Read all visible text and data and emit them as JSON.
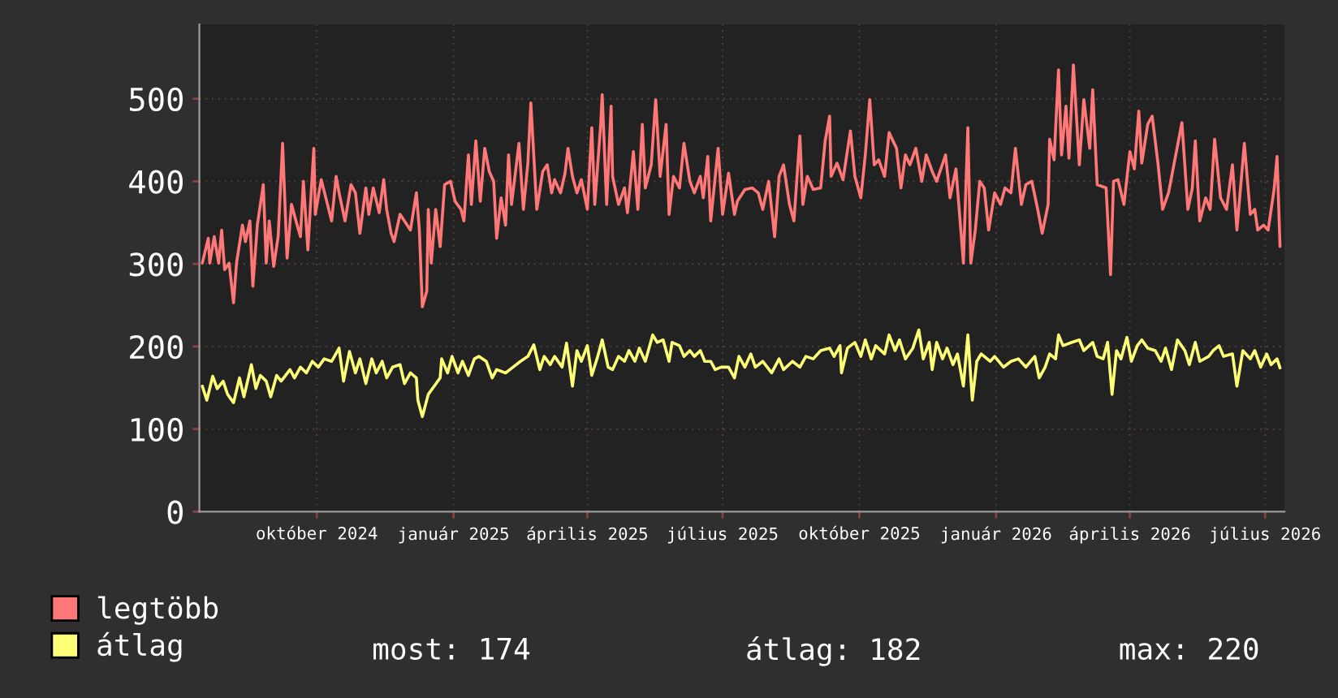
{
  "chart_data": {
    "type": "line",
    "xlim": [
      "2024-07-14",
      "2026-07-14"
    ],
    "xticks": [
      {
        "value": "2024-10-01",
        "label": "október 2024"
      },
      {
        "value": "2025-01-01",
        "label": "január 2025"
      },
      {
        "value": "2025-04-01",
        "label": "április 2025"
      },
      {
        "value": "2025-07-01",
        "label": "július 2025"
      },
      {
        "value": "2025-10-01",
        "label": "október 2025"
      },
      {
        "value": "2026-01-01",
        "label": "január 2026"
      },
      {
        "value": "2026-04-01",
        "label": "április 2026"
      },
      {
        "value": "2026-07-01",
        "label": "július 2026"
      }
    ],
    "ylim": [
      0,
      590
    ],
    "yticks": [
      0,
      100,
      200,
      300,
      400,
      500
    ],
    "grid": true,
    "legend": "bottom left",
    "annotations": [
      "most: 174",
      "átlag: 182",
      "max: 220"
    ],
    "series": [
      {
        "name": "legtöbb",
        "color": "#ff7777",
        "x": [
          "2024-07-16",
          "2024-07-20",
          "2024-07-21",
          "2024-07-24",
          "2024-07-27",
          "2024-07-29",
          "2024-07-31",
          "2024-08-03",
          "2024-08-06",
          "2024-08-08",
          "2024-08-12",
          "2024-08-14",
          "2024-08-17",
          "2024-08-19",
          "2024-08-22",
          "2024-08-26",
          "2024-08-28",
          "2024-08-30",
          "2024-09-02",
          "2024-09-05",
          "2024-09-08",
          "2024-09-11",
          "2024-09-14",
          "2024-09-17",
          "2024-09-20",
          "2024-09-22",
          "2024-09-25",
          "2024-09-29",
          "2024-09-30",
          "2024-10-04",
          "2024-10-11",
          "2024-10-14",
          "2024-10-16",
          "2024-10-20",
          "2024-10-24",
          "2024-10-27",
          "2024-10-30",
          "2024-11-03",
          "2024-11-05",
          "2024-11-08",
          "2024-11-12",
          "2024-11-15",
          "2024-11-17",
          "2024-11-20",
          "2024-11-22",
          "2024-11-26",
          "2024-12-03",
          "2024-12-07",
          "2024-12-09",
          "2024-12-11",
          "2024-12-14",
          "2024-12-15",
          "2024-12-17",
          "2024-12-20",
          "2024-12-23",
          "2024-12-26",
          "2024-12-30",
          "2025-01-02",
          "2025-01-06",
          "2025-01-08",
          "2025-01-11",
          "2025-01-13",
          "2025-01-16",
          "2025-01-19",
          "2025-01-22",
          "2025-01-25",
          "2025-01-28",
          "2025-01-30",
          "2025-02-02",
          "2025-02-05",
          "2025-02-07",
          "2025-02-09",
          "2025-02-14",
          "2025-02-17",
          "2025-02-20",
          "2025-02-22",
          "2025-02-26",
          "2025-03-02",
          "2025-03-05",
          "2025-03-08",
          "2025-03-10",
          "2025-03-14",
          "2025-03-17",
          "2025-03-19",
          "2025-03-22",
          "2025-03-25",
          "2025-03-28",
          "2025-04-01",
          "2025-04-04",
          "2025-04-06",
          "2025-04-10",
          "2025-04-11",
          "2025-04-14",
          "2025-04-17",
          "2025-04-18",
          "2025-04-22",
          "2025-04-26",
          "2025-04-28",
          "2025-05-02",
          "2025-05-05",
          "2025-05-08",
          "2025-05-10",
          "2025-05-14",
          "2025-05-17",
          "2025-05-20",
          "2025-05-24",
          "2025-05-26",
          "2025-05-29",
          "2025-06-02",
          "2025-06-05",
          "2025-06-09",
          "2025-06-12",
          "2025-06-16",
          "2025-06-18",
          "2025-06-21",
          "2025-06-23",
          "2025-06-28",
          "2025-07-01",
          "2025-07-05",
          "2025-07-09",
          "2025-07-11",
          "2025-07-16",
          "2025-07-21",
          "2025-07-25",
          "2025-07-28",
          "2025-08-01",
          "2025-08-05",
          "2025-08-08",
          "2025-08-11",
          "2025-08-15",
          "2025-08-18",
          "2025-08-22",
          "2025-08-24",
          "2025-08-27",
          "2025-08-31",
          "2025-09-05",
          "2025-09-08",
          "2025-09-11",
          "2025-09-12",
          "2025-09-16",
          "2025-09-20",
          "2025-09-25",
          "2025-09-28",
          "2025-10-02",
          "2025-10-05",
          "2025-10-08",
          "2025-10-11",
          "2025-10-14",
          "2025-10-18",
          "2025-10-21",
          "2025-10-26",
          "2025-10-29",
          "2025-11-01",
          "2025-11-04",
          "2025-11-08",
          "2025-11-12",
          "2025-11-15",
          "2025-11-19",
          "2025-11-22",
          "2025-11-28",
          "2025-12-01",
          "2025-12-05",
          "2025-12-08",
          "2025-12-10",
          "2025-12-13",
          "2025-12-15",
          "2025-12-18",
          "2025-12-21",
          "2025-12-24",
          "2025-12-27",
          "2025-12-31",
          "2026-01-04",
          "2026-01-07",
          "2026-01-11",
          "2026-01-14",
          "2026-01-18",
          "2026-01-21",
          "2026-01-25",
          "2026-01-29",
          "2026-02-01",
          "2026-02-05",
          "2026-02-06",
          "2026-02-09",
          "2026-02-12",
          "2026-02-14",
          "2026-02-17",
          "2026-02-19",
          "2026-02-22",
          "2026-02-26",
          "2026-03-01",
          "2026-03-05",
          "2026-03-07",
          "2026-03-10",
          "2026-03-16",
          "2026-03-19",
          "2026-03-21",
          "2026-03-24",
          "2026-03-28",
          "2026-04-01",
          "2026-04-04",
          "2026-04-07",
          "2026-04-09",
          "2026-04-13",
          "2026-04-16",
          "2026-04-20",
          "2026-04-23",
          "2026-04-27",
          "2026-05-06",
          "2026-05-10",
          "2026-05-13",
          "2026-05-15",
          "2026-05-18",
          "2026-05-22",
          "2026-05-25",
          "2026-05-28",
          "2026-06-01",
          "2026-06-05",
          "2026-06-09",
          "2026-06-12",
          "2026-06-17",
          "2026-06-21",
          "2026-06-24",
          "2026-06-26",
          "2026-06-30",
          "2026-07-03",
          "2026-07-07",
          "2026-07-09",
          "2026-07-11"
        ],
        "values": [
          301,
          331,
          301,
          333,
          301,
          341,
          293,
          301,
          253,
          301,
          347,
          327,
          352,
          273,
          347,
          396,
          301,
          352,
          297,
          333,
          446,
          307,
          372,
          352,
          333,
          400,
          317,
          440,
          360,
          402,
          352,
          406,
          386,
          352,
          396,
          386,
          337,
          392,
          360,
          392,
          362,
          402,
          366,
          337,
          327,
          360,
          341,
          386,
          341,
          248,
          267,
          366,
          301,
          366,
          321,
          396,
          400,
          376,
          366,
          352,
          432,
          372,
          449,
          376,
          440,
          412,
          400,
          331,
          380,
          347,
          432,
          372,
          446,
          366,
          422,
          495,
          366,
          412,
          420,
          386,
          402,
          386,
          410,
          440,
          406,
          386,
          402,
          366,
          465,
          372,
          469,
          505,
          372,
          491,
          406,
          372,
          392,
          362,
          436,
          366,
          469,
          392,
          420,
          499,
          406,
          469,
          360,
          406,
          392,
          446,
          400,
          386,
          406,
          380,
          430,
          352,
          440,
          360,
          410,
          360,
          376,
          390,
          392,
          386,
          366,
          400,
          333,
          406,
          420,
          372,
          352,
          455,
          372,
          406,
          390,
          392,
          449,
          479,
          406,
          422,
          402,
          461,
          406,
          380,
          432,
          499,
          420,
          426,
          406,
          459,
          440,
          392,
          432,
          420,
          440,
          400,
          432,
          412,
          400,
          432,
          380,
          415,
          347,
          301,
          465,
          301,
          341,
          400,
          392,
          341,
          386,
          372,
          392,
          386,
          440,
          372,
          396,
          400,
          366,
          337,
          372,
          451,
          426,
          535,
          432,
          491,
          428,
          541,
          420,
          499,
          440,
          511,
          396,
          392,
          287,
          400,
          402,
          372,
          436,
          415,
          485,
          422,
          469,
          479,
          420,
          366,
          386,
          471,
          366,
          392,
          449,
          352,
          380,
          366,
          451,
          380,
          366,
          420,
          341,
          446,
          360,
          366,
          341,
          347,
          341,
          390,
          430,
          321
        ]
      },
      {
        "name": "átlag",
        "color": "#ffff77",
        "x": [
          "2024-07-16",
          "2024-07-19",
          "2024-07-23",
          "2024-07-26",
          "2024-07-30",
          "2024-08-02",
          "2024-08-06",
          "2024-08-10",
          "2024-08-13",
          "2024-08-18",
          "2024-08-21",
          "2024-08-24",
          "2024-08-28",
          "2024-08-31",
          "2024-09-04",
          "2024-09-07",
          "2024-09-13",
          "2024-09-16",
          "2024-09-20",
          "2024-09-24",
          "2024-09-28",
          "2024-10-02",
          "2024-10-06",
          "2024-10-11",
          "2024-10-16",
          "2024-10-19",
          "2024-10-23",
          "2024-10-27",
          "2024-10-30",
          "2024-11-03",
          "2024-11-07",
          "2024-11-10",
          "2024-11-14",
          "2024-11-17",
          "2024-11-21",
          "2024-11-26",
          "2024-11-29",
          "2024-12-03",
          "2024-12-07",
          "2024-12-08",
          "2024-12-11",
          "2024-12-15",
          "2024-12-19",
          "2024-12-23",
          "2024-12-24",
          "2024-12-28",
          "2024-12-31",
          "2025-01-04",
          "2025-01-07",
          "2025-01-11",
          "2025-01-15",
          "2025-01-18",
          "2025-01-23",
          "2025-01-27",
          "2025-01-30",
          "2025-02-05",
          "2025-02-10",
          "2025-02-15",
          "2025-02-20",
          "2025-02-24",
          "2025-02-28",
          "2025-03-03",
          "2025-03-07",
          "2025-03-10",
          "2025-03-15",
          "2025-03-18",
          "2025-03-22",
          "2025-03-25",
          "2025-03-28",
          "2025-04-01",
          "2025-04-04",
          "2025-04-08",
          "2025-04-11",
          "2025-04-15",
          "2025-04-18",
          "2025-04-22",
          "2025-04-26",
          "2025-04-29",
          "2025-05-03",
          "2025-05-06",
          "2025-05-10",
          "2025-05-15",
          "2025-05-18",
          "2025-05-22",
          "2025-05-26",
          "2025-05-28",
          "2025-06-02",
          "2025-06-05",
          "2025-06-09",
          "2025-06-12",
          "2025-06-16",
          "2025-06-19",
          "2025-06-23",
          "2025-06-26",
          "2025-06-30",
          "2025-07-05",
          "2025-07-09",
          "2025-07-12",
          "2025-07-16",
          "2025-07-20",
          "2025-07-23",
          "2025-07-28",
          "2025-08-03",
          "2025-08-08",
          "2025-08-11",
          "2025-08-17",
          "2025-08-22",
          "2025-08-26",
          "2025-08-31",
          "2025-09-05",
          "2025-09-11",
          "2025-09-14",
          "2025-09-18",
          "2025-09-19",
          "2025-09-23",
          "2025-09-28",
          "2025-10-02",
          "2025-10-05",
          "2025-10-09",
          "2025-10-12",
          "2025-10-18",
          "2025-10-21",
          "2025-10-25",
          "2025-10-28",
          "2025-11-01",
          "2025-11-06",
          "2025-11-10",
          "2025-11-13",
          "2025-11-17",
          "2025-11-19",
          "2025-11-22",
          "2025-11-26",
          "2025-11-29",
          "2025-12-03",
          "2025-12-06",
          "2025-12-10",
          "2025-12-13",
          "2025-12-16",
          "2025-12-19",
          "2025-12-22",
          "2025-12-28",
          "2025-12-31",
          "2026-01-06",
          "2026-01-11",
          "2026-01-16",
          "2026-01-21",
          "2026-01-27",
          "2026-01-30",
          "2026-02-03",
          "2026-02-06",
          "2026-02-10",
          "2026-02-12",
          "2026-02-15",
          "2026-02-21",
          "2026-02-26",
          "2026-03-01",
          "2026-03-07",
          "2026-03-10",
          "2026-03-14",
          "2026-03-17",
          "2026-03-20",
          "2026-03-23",
          "2026-03-26",
          "2026-03-30",
          "2026-04-02",
          "2026-04-06",
          "2026-04-09",
          "2026-04-13",
          "2026-04-18",
          "2026-04-22",
          "2026-04-25",
          "2026-04-29",
          "2026-05-03",
          "2026-05-08",
          "2026-05-11",
          "2026-05-15",
          "2026-05-18",
          "2026-05-24",
          "2026-05-27",
          "2026-05-31",
          "2026-06-03",
          "2026-06-09",
          "2026-06-12",
          "2026-06-16",
          "2026-06-21",
          "2026-06-24",
          "2026-06-28",
          "2026-07-02",
          "2026-07-05",
          "2026-07-09",
          "2026-07-11"
        ],
        "values": [
          152,
          135,
          164,
          149,
          158,
          142,
          132,
          162,
          139,
          178,
          149,
          165,
          158,
          139,
          165,
          158,
          172,
          162,
          175,
          168,
          182,
          175,
          185,
          182,
          198,
          158,
          194,
          168,
          185,
          155,
          185,
          168,
          182,
          162,
          175,
          178,
          155,
          168,
          162,
          135,
          115,
          142,
          152,
          162,
          185,
          168,
          188,
          168,
          182,
          165,
          185,
          188,
          182,
          162,
          172,
          168,
          175,
          182,
          188,
          202,
          172,
          188,
          178,
          188,
          175,
          204,
          152,
          195,
          182,
          201,
          165,
          188,
          208,
          175,
          172,
          188,
          182,
          195,
          182,
          198,
          182,
          214,
          205,
          208,
          182,
          205,
          201,
          188,
          195,
          188,
          195,
          182,
          182,
          172,
          175,
          175,
          162,
          188,
          175,
          191,
          175,
          182,
          168,
          185,
          172,
          182,
          175,
          188,
          185,
          195,
          198,
          188,
          201,
          168,
          198,
          205,
          188,
          208,
          185,
          201,
          191,
          214,
          195,
          208,
          185,
          198,
          220,
          185,
          205,
          172,
          205,
          185,
          198,
          178,
          191,
          152,
          214,
          135,
          182,
          191,
          182,
          188,
          175,
          182,
          185,
          175,
          188,
          162,
          175,
          191,
          185,
          214,
          201,
          205,
          208,
          195,
          205,
          188,
          185,
          205,
          142,
          195,
          185,
          211,
          182,
          201,
          208,
          198,
          195,
          182,
          198,
          172,
          208,
          195,
          178,
          205,
          182,
          188,
          195,
          201,
          188,
          191,
          152,
          195,
          185,
          195,
          175,
          191,
          178,
          185,
          174
        ]
      }
    ]
  }
}
